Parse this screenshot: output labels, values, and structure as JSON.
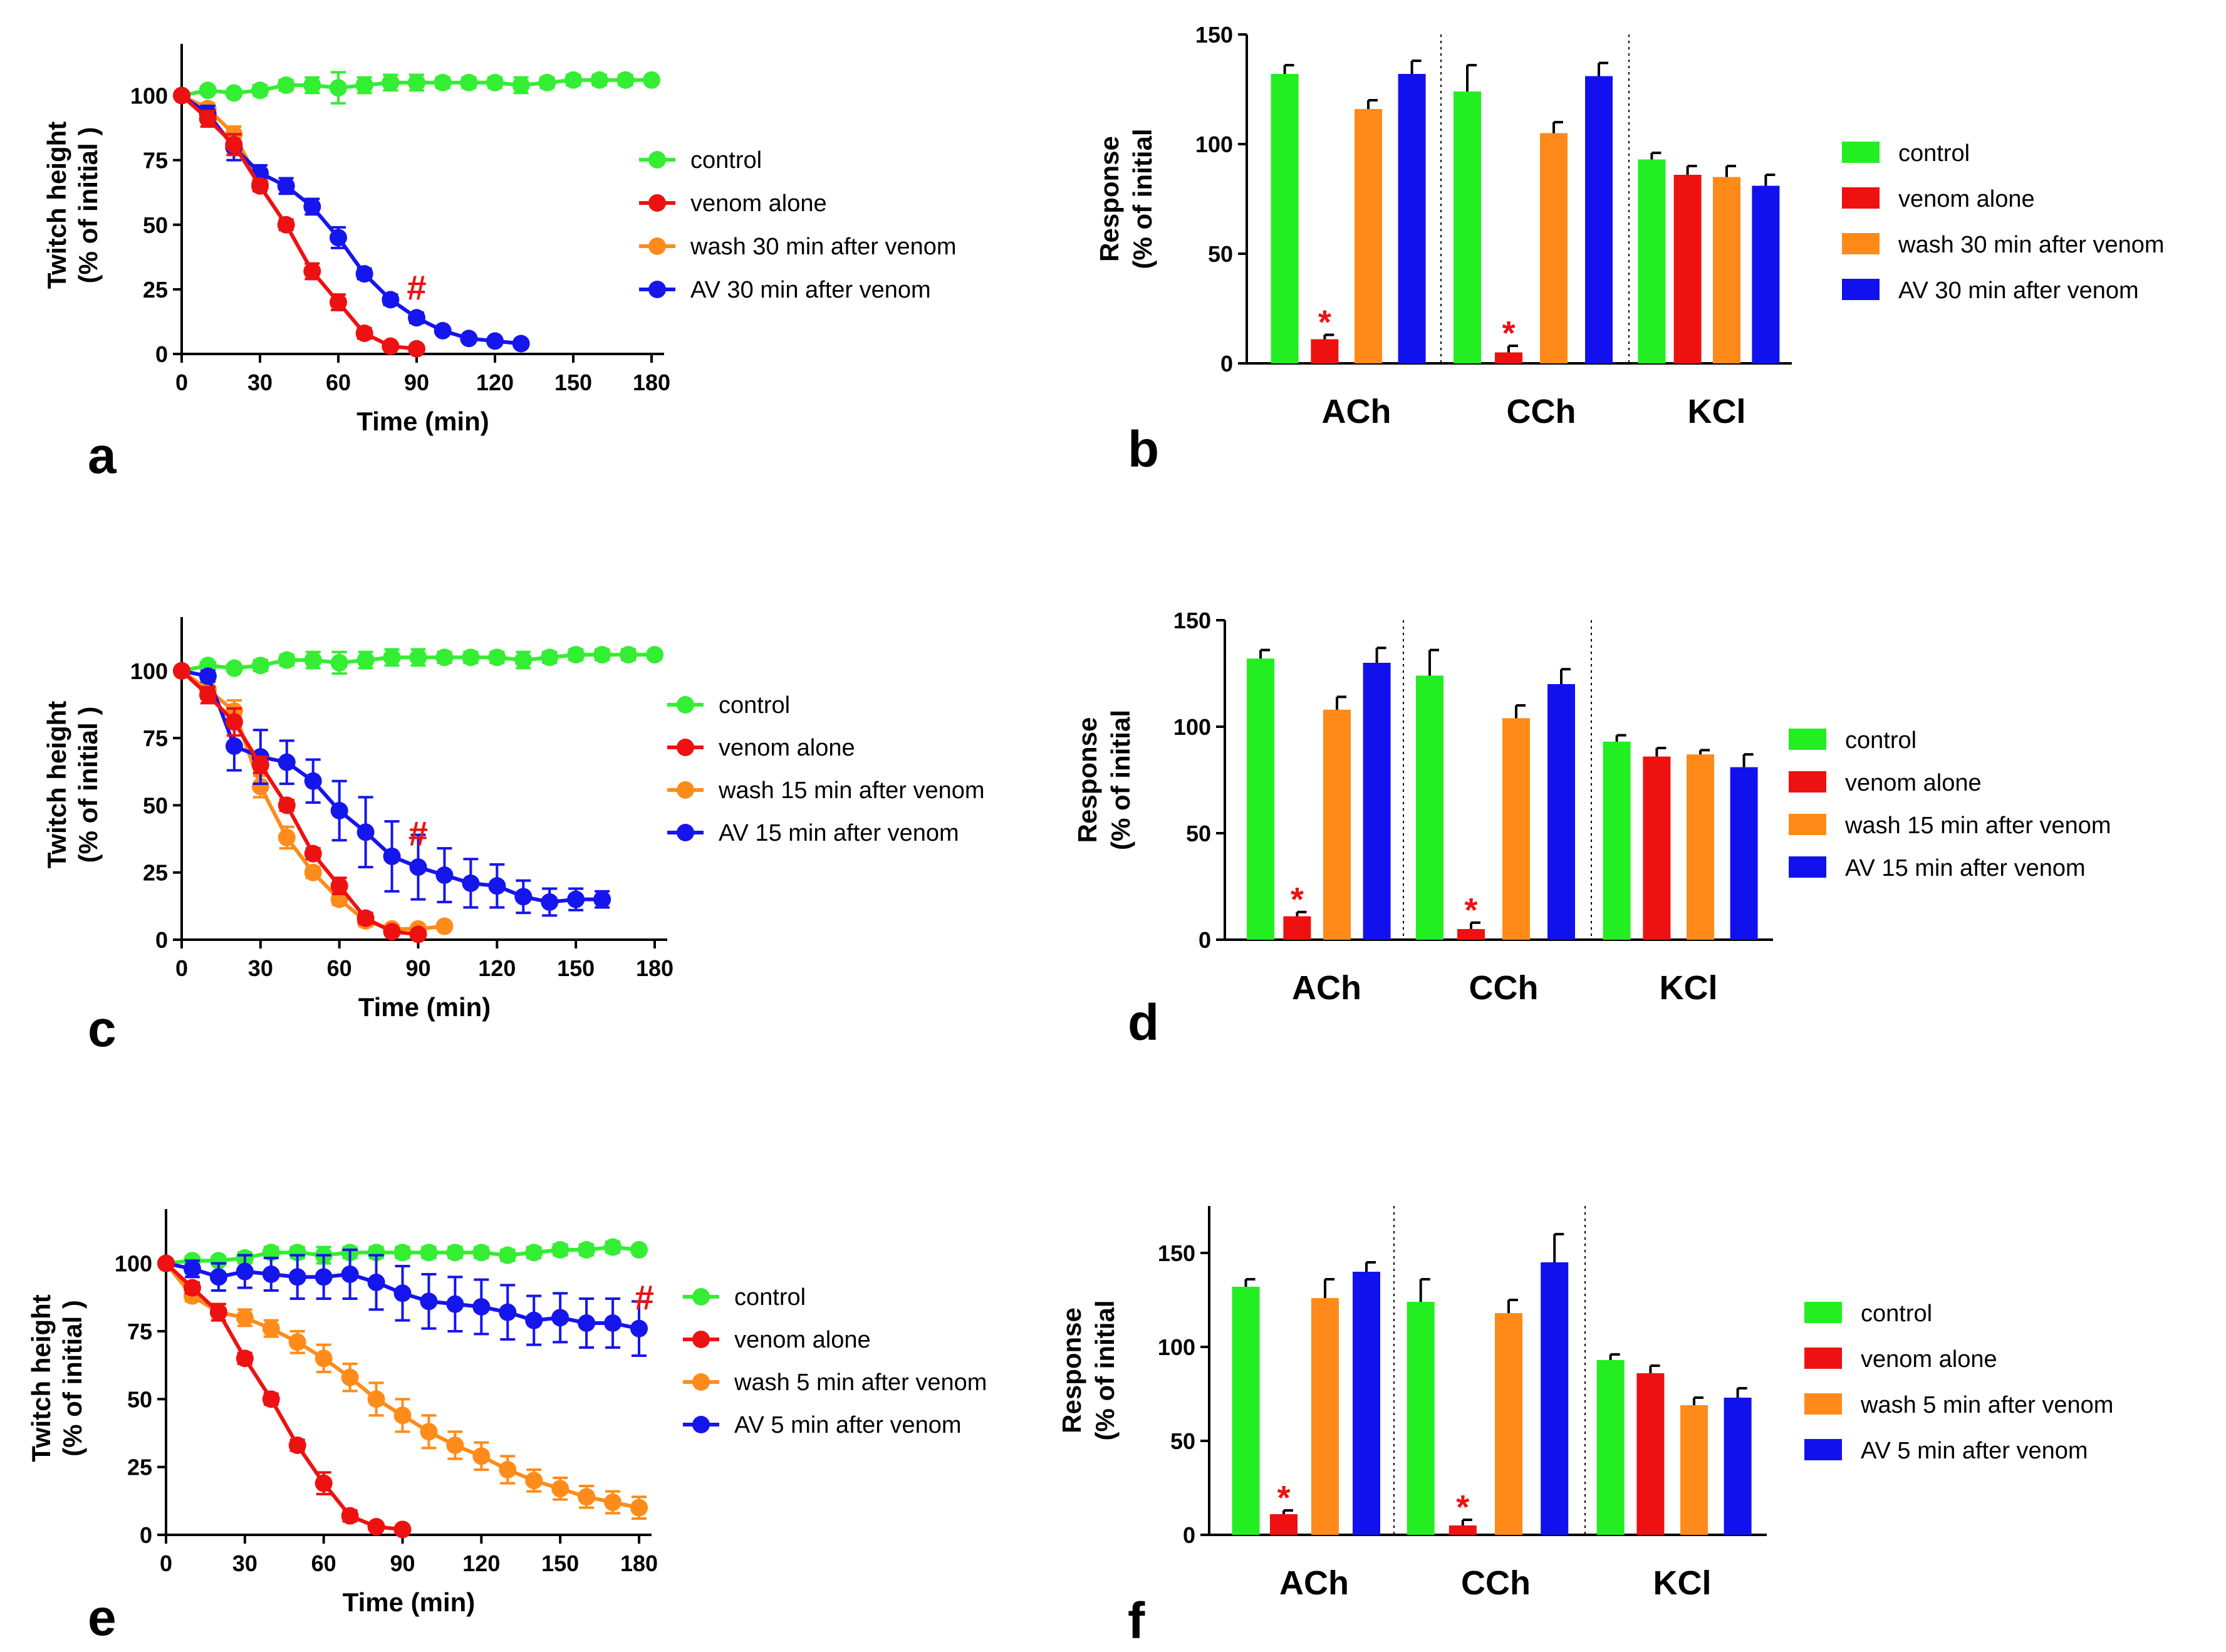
{
  "chart_data": [
    {
      "panel": "a",
      "type": "line",
      "xlabel": "Time (min)",
      "ylabel": [
        "Twitch height",
        "(% of initial )"
      ],
      "xlim": [
        0,
        180
      ],
      "ylim": [
        0,
        120
      ],
      "xticks": [
        0,
        30,
        60,
        90,
        120,
        150,
        180
      ],
      "yticks": [
        0,
        25,
        50,
        75,
        100
      ],
      "legend": [
        "control",
        "venom alone",
        "wash 30 min after venom",
        "AV 30 min after venom"
      ],
      "marker": {
        "text": "#",
        "x": 90,
        "y": 21
      },
      "series": [
        {
          "name": "control",
          "color": "#33ee33",
          "x": [
            0,
            10,
            20,
            30,
            40,
            50,
            60,
            70,
            80,
            90,
            100,
            110,
            120,
            130,
            140,
            150,
            160,
            170,
            180
          ],
          "y": [
            100,
            102,
            101,
            102,
            104,
            104,
            103,
            104,
            105,
            105,
            105,
            105,
            105,
            104,
            105,
            106,
            106,
            106,
            106
          ],
          "err": [
            0,
            1,
            1,
            2,
            2,
            3,
            6,
            3,
            3,
            3,
            2,
            2,
            2,
            3,
            2,
            2,
            2,
            2,
            1
          ]
        },
        {
          "name": "venom alone",
          "color": "#ee1111",
          "x": [
            0,
            10,
            20,
            30,
            40,
            50,
            60,
            70,
            80,
            90
          ],
          "y": [
            100,
            91,
            81,
            65,
            50,
            32,
            20,
            8,
            3,
            2
          ],
          "err": [
            0,
            3,
            4,
            2,
            2,
            3,
            3,
            2,
            1,
            1
          ]
        },
        {
          "name": "wash 30 min after venom",
          "color": "#ff8c1a",
          "x": [
            0,
            10,
            20,
            30
          ],
          "y": [
            100,
            95,
            85,
            66
          ],
          "err": [
            0,
            2,
            3,
            2
          ]
        },
        {
          "name": "AV 30 min after venom",
          "color": "#1515ee",
          "x": [
            0,
            10,
            20,
            30,
            40,
            50,
            60,
            70,
            80,
            90,
            100,
            110,
            120,
            130
          ],
          "y": [
            100,
            93,
            80,
            70,
            65,
            57,
            45,
            31,
            21,
            14,
            9,
            6,
            5,
            4
          ],
          "err": [
            0,
            3,
            5,
            3,
            3,
            3,
            4,
            2,
            2,
            2,
            1,
            1,
            1,
            1
          ]
        }
      ]
    },
    {
      "panel": "b",
      "type": "bar",
      "ylabel": [
        "Response",
        "(% of initial"
      ],
      "ylim": [
        0,
        150
      ],
      "yticks": [
        0,
        50,
        100,
        150
      ],
      "categories": [
        "ACh",
        "CCh",
        "KCl"
      ],
      "legend": [
        "control",
        "venom alone",
        "wash 30 min after venom",
        "AV 30 min after venom"
      ],
      "series": [
        {
          "name": "control",
          "color": "#22ee22",
          "values": [
            132,
            124,
            93
          ],
          "err": [
            4,
            12,
            3
          ]
        },
        {
          "name": "venom alone",
          "color": "#ee1111",
          "values": [
            11,
            5,
            86
          ],
          "err": [
            2,
            3,
            4
          ]
        },
        {
          "name": "wash 30 min after venom",
          "color": "#ff8a1a",
          "values": [
            116,
            105,
            85
          ],
          "err": [
            4,
            5,
            5
          ]
        },
        {
          "name": "AV 30 min after venom",
          "color": "#1111ee",
          "values": [
            132,
            131,
            81
          ],
          "err": [
            6,
            6,
            5
          ]
        }
      ],
      "stars": [
        {
          "text": "*",
          "category": 0
        },
        {
          "text": "*",
          "category": 1
        }
      ]
    },
    {
      "panel": "c",
      "type": "line",
      "xlabel": "Time (min)",
      "ylabel": [
        "Twitch height",
        "(% of initial )"
      ],
      "xlim": [
        0,
        180
      ],
      "ylim": [
        0,
        120
      ],
      "xticks": [
        0,
        30,
        60,
        90,
        120,
        150,
        180
      ],
      "yticks": [
        0,
        25,
        50,
        75,
        100
      ],
      "legend": [
        "control",
        "venom alone",
        "wash 15 min after venom",
        "AV 15 min after venom"
      ],
      "marker": {
        "text": "#",
        "x": 90,
        "y": 35
      },
      "series": [
        {
          "name": "control",
          "color": "#33ee33",
          "x": [
            0,
            10,
            20,
            30,
            40,
            50,
            60,
            70,
            80,
            90,
            100,
            110,
            120,
            130,
            140,
            150,
            160,
            170,
            180
          ],
          "y": [
            100,
            102,
            101,
            102,
            104,
            104,
            103,
            104,
            105,
            105,
            105,
            105,
            105,
            104,
            105,
            106,
            106,
            106,
            106
          ],
          "err": [
            0,
            1,
            1,
            2,
            2,
            3,
            4,
            3,
            3,
            3,
            2,
            2,
            2,
            3,
            2,
            2,
            2,
            2,
            1
          ]
        },
        {
          "name": "venom alone",
          "color": "#ee1111",
          "x": [
            0,
            10,
            20,
            30,
            40,
            50,
            60,
            70,
            80,
            90
          ],
          "y": [
            100,
            91,
            81,
            65,
            50,
            32,
            20,
            8,
            3,
            2
          ],
          "err": [
            0,
            3,
            5,
            3,
            2,
            2,
            3,
            2,
            1,
            1
          ]
        },
        {
          "name": "wash 15 min after venom",
          "color": "#ff8c1a",
          "x": [
            0,
            10,
            20,
            30,
            40,
            50,
            60,
            70,
            80,
            90,
            100
          ],
          "y": [
            100,
            93,
            85,
            57,
            38,
            25,
            15,
            7,
            4,
            4,
            5
          ],
          "err": [
            0,
            3,
            4,
            4,
            4,
            2,
            2,
            2,
            1,
            1,
            1
          ]
        },
        {
          "name": "AV 15 min after venom",
          "color": "#1515ee",
          "x": [
            0,
            10,
            20,
            30,
            40,
            50,
            60,
            70,
            80,
            90,
            100,
            110,
            120,
            130,
            140,
            150,
            160
          ],
          "y": [
            100,
            98,
            72,
            68,
            66,
            59,
            48,
            40,
            31,
            27,
            24,
            21,
            20,
            16,
            14,
            15,
            15
          ],
          "err": [
            0,
            2,
            9,
            10,
            8,
            8,
            11,
            13,
            13,
            12,
            10,
            9,
            8,
            6,
            5,
            4,
            3
          ]
        }
      ]
    },
    {
      "panel": "d",
      "type": "bar",
      "ylabel": [
        "Response",
        "(% of initial"
      ],
      "ylim": [
        0,
        150
      ],
      "yticks": [
        0,
        50,
        100,
        150
      ],
      "categories": [
        "ACh",
        "CCh",
        "KCl"
      ],
      "legend": [
        "control",
        "venom alone",
        "wash 15 min after venom",
        "AV 15 min after venom"
      ],
      "series": [
        {
          "name": "control",
          "color": "#22ee22",
          "values": [
            132,
            124,
            93
          ],
          "err": [
            4,
            12,
            3
          ]
        },
        {
          "name": "venom alone",
          "color": "#ee1111",
          "values": [
            11,
            5,
            86
          ],
          "err": [
            2,
            3,
            4
          ]
        },
        {
          "name": "wash 15 min after venom",
          "color": "#ff8a1a",
          "values": [
            108,
            104,
            87
          ],
          "err": [
            6,
            6,
            2
          ]
        },
        {
          "name": "AV 15 min after venom",
          "color": "#1111ee",
          "values": [
            130,
            120,
            81
          ],
          "err": [
            7,
            7,
            6
          ]
        }
      ],
      "stars": [
        {
          "text": "*",
          "category": 0
        },
        {
          "text": "*",
          "category": 1
        }
      ]
    },
    {
      "panel": "e",
      "type": "line",
      "xlabel": "Time (min)",
      "ylabel": [
        "Twitch height",
        "(% of initial )"
      ],
      "xlim": [
        0,
        180
      ],
      "ylim": [
        0,
        120
      ],
      "xticks": [
        0,
        30,
        60,
        90,
        120,
        150,
        180
      ],
      "yticks": [
        0,
        25,
        50,
        75,
        100
      ],
      "legend": [
        "control",
        "venom alone",
        "wash 5 min after venom",
        "AV 5 min after venom"
      ],
      "marker": {
        "text": "#",
        "x": 182,
        "y": 83
      },
      "series": [
        {
          "name": "control",
          "color": "#33ee33",
          "x": [
            0,
            10,
            20,
            30,
            40,
            50,
            60,
            70,
            80,
            90,
            100,
            110,
            120,
            130,
            140,
            150,
            160,
            170,
            180
          ],
          "y": [
            100,
            101,
            101,
            102,
            104,
            104,
            103,
            104,
            104,
            104,
            104,
            104,
            104,
            103,
            104,
            105,
            105,
            106,
            105
          ],
          "err": [
            0,
            1,
            1,
            2,
            2,
            2,
            3,
            2,
            2,
            2,
            2,
            2,
            2,
            2,
            2,
            2,
            2,
            2,
            1
          ]
        },
        {
          "name": "venom alone",
          "color": "#ee1111",
          "x": [
            0,
            10,
            20,
            30,
            40,
            50,
            60,
            70,
            80,
            90
          ],
          "y": [
            100,
            91,
            82,
            65,
            50,
            33,
            19,
            7,
            3,
            2
          ],
          "err": [
            0,
            2,
            3,
            2,
            2,
            2,
            4,
            2,
            1,
            1
          ]
        },
        {
          "name": "wash 5 min after venom",
          "color": "#ff8c1a",
          "x": [
            0,
            10,
            20,
            30,
            40,
            50,
            60,
            70,
            80,
            90,
            100,
            110,
            120,
            130,
            140,
            150,
            160,
            170,
            180
          ],
          "y": [
            100,
            88,
            82,
            80,
            76,
            71,
            65,
            58,
            50,
            44,
            38,
            33,
            29,
            24,
            20,
            17,
            14,
            12,
            10
          ],
          "err": [
            0,
            2,
            3,
            3,
            3,
            4,
            5,
            5,
            6,
            6,
            6,
            5,
            5,
            5,
            4,
            4,
            4,
            4,
            4
          ]
        },
        {
          "name": "AV 5 min after venom",
          "color": "#1515ee",
          "x": [
            0,
            10,
            20,
            30,
            40,
            50,
            60,
            70,
            80,
            90,
            100,
            110,
            120,
            130,
            140,
            150,
            160,
            170,
            180
          ],
          "y": [
            100,
            98,
            95,
            97,
            96,
            95,
            95,
            96,
            93,
            89,
            86,
            85,
            84,
            82,
            79,
            80,
            78,
            78,
            76
          ],
          "err": [
            0,
            3,
            5,
            6,
            6,
            8,
            8,
            9,
            10,
            10,
            10,
            10,
            10,
            10,
            9,
            9,
            9,
            9,
            10
          ]
        }
      ]
    },
    {
      "panel": "f",
      "type": "bar",
      "ylabel": [
        "Response",
        "(% of initial"
      ],
      "ylim": [
        0,
        175
      ],
      "yticks": [
        0,
        50,
        100,
        150
      ],
      "categories": [
        "ACh",
        "CCh",
        "KCl"
      ],
      "legend": [
        "control",
        "venom alone",
        "wash 5 min after venom",
        "AV 5 min after venom"
      ],
      "series": [
        {
          "name": "control",
          "color": "#22ee22",
          "values": [
            132,
            124,
            93
          ],
          "err": [
            4,
            12,
            3
          ]
        },
        {
          "name": "venom alone",
          "color": "#ee1111",
          "values": [
            11,
            5,
            86
          ],
          "err": [
            2,
            3,
            4
          ]
        },
        {
          "name": "wash 5 min after venom",
          "color": "#ff8a1a",
          "values": [
            126,
            118,
            69
          ],
          "err": [
            10,
            7,
            4
          ]
        },
        {
          "name": "AV 5 min after venom",
          "color": "#1111ee",
          "values": [
            140,
            145,
            73
          ],
          "err": [
            5,
            15,
            5
          ]
        }
      ],
      "stars": [
        {
          "text": "*",
          "category": 0
        },
        {
          "text": "*",
          "category": 1
        }
      ]
    }
  ]
}
